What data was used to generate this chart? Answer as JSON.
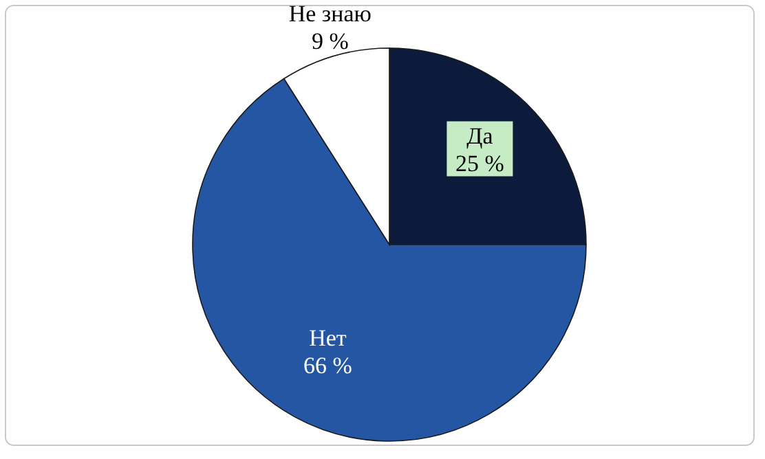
{
  "chart_data": {
    "type": "pie",
    "categories": [
      "Да",
      "Нет",
      "Не знаю"
    ],
    "values": [
      25,
      66,
      9
    ],
    "value_labels": [
      "25 %",
      "66 %",
      "9 %"
    ],
    "colors": [
      "#0c1a3c",
      "#2456a4",
      "#ffffff"
    ]
  }
}
